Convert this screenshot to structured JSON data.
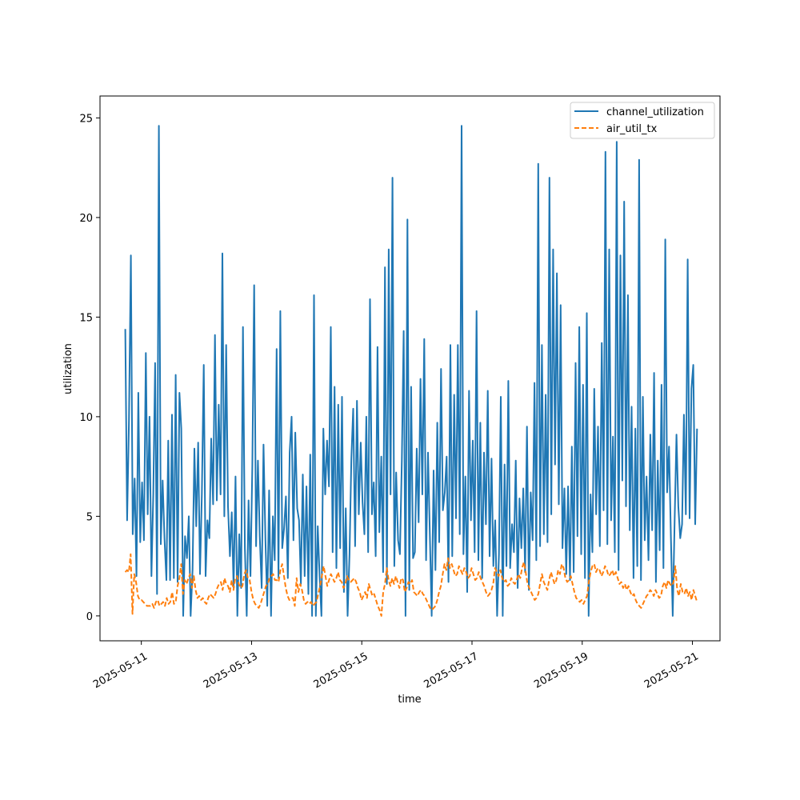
{
  "chart_data": {
    "type": "line",
    "title": "",
    "xlabel": "time",
    "ylabel": "utilization",
    "xlim": [
      "2025-05-10 06:00",
      "2025-05-21 12:00"
    ],
    "ylim": [
      -1.25,
      26.1
    ],
    "x_ticks": [
      "2025-05-11",
      "2025-05-13",
      "2025-05-15",
      "2025-05-17",
      "2025-05-19",
      "2025-05-21"
    ],
    "y_ticks": [
      0,
      5,
      10,
      15,
      20,
      25
    ],
    "grid": false,
    "legend_position": "top-right",
    "x_start": "2025-05-10 17:00",
    "x_end": "2025-05-21 02:00",
    "series": [
      {
        "name": "channel_utilization",
        "style": "solid",
        "color": "#1f77b4",
        "values": [
          14.4,
          4.8,
          9.8,
          18.1,
          4.1,
          6.9,
          2.0,
          11.2,
          3.7,
          6.7,
          3.8,
          13.2,
          5.1,
          10.0,
          2.0,
          6.1,
          12.7,
          1.1,
          24.6,
          3.6,
          6.8,
          3.9,
          1.8,
          8.8,
          1.8,
          10.1,
          1.9,
          12.1,
          1.7,
          11.2,
          9.4,
          0.0,
          4.0,
          2.9,
          5.0,
          0.0,
          2.3,
          8.4,
          4.5,
          8.7,
          2.1,
          6.1,
          12.6,
          2.0,
          4.8,
          3.9,
          8.9,
          5.6,
          14.1,
          5.8,
          10.6,
          6.1,
          18.2,
          5.0,
          13.6,
          5.5,
          3.0,
          5.2,
          1.4,
          7.0,
          0.0,
          4.1,
          1.4,
          14.5,
          3.4,
          0.0,
          5.8,
          2.0,
          7.5,
          16.6,
          3.5,
          7.8,
          4.0,
          1.4,
          8.6,
          3.8,
          0.5,
          6.3,
          0.0,
          5.0,
          2.8,
          13.4,
          1.9,
          15.3,
          3.4,
          4.4,
          6.0,
          1.9,
          8.2,
          10.0,
          3.8,
          9.2,
          5.4,
          4.8,
          1.6,
          7.1,
          2.0,
          6.5,
          1.1,
          8.1,
          0.0,
          16.1,
          0.0,
          4.5,
          2.0,
          0.0,
          9.4,
          6.1,
          8.8,
          6.5,
          14.5,
          3.2,
          11.5,
          2.4,
          10.6,
          3.4,
          11.0,
          1.2,
          5.4,
          0.0,
          3.1,
          7.9,
          10.4,
          3.5,
          10.8,
          5.1,
          8.7,
          5.7,
          4.1,
          10.0,
          3.2,
          15.9,
          5.1,
          6.7,
          3.0,
          13.5,
          4.2,
          8.0,
          2.2,
          17.5,
          1.6,
          18.4,
          6.1,
          22.0,
          2.5,
          7.2,
          3.8,
          3.1,
          7.8,
          14.3,
          0.0,
          19.9,
          1.3,
          11.5,
          2.9,
          3.2,
          8.4,
          4.7,
          11.9,
          6.1,
          13.9,
          2.8,
          8.2,
          4.1,
          0.0,
          7.3,
          2.3,
          9.7,
          3.7,
          12.4,
          5.3,
          6.2,
          8.0,
          1.7,
          13.6,
          3.0,
          11.1,
          4.9,
          13.6,
          4.1,
          24.6,
          3.1,
          7.0,
          1.2,
          11.3,
          4.8,
          8.8,
          3.2,
          15.3,
          2.8,
          9.7,
          1.9,
          8.2,
          4.6,
          11.3,
          3.0,
          7.9,
          2.5,
          4.8,
          0.0,
          3.1,
          11.0,
          0.0,
          7.6,
          2.5,
          11.8,
          2.4,
          4.6,
          3.2,
          7.8,
          1.4,
          5.9,
          3.4,
          6.4,
          2.2,
          9.5,
          1.3,
          6.2,
          3.8,
          11.7,
          2.8,
          22.7,
          3.5,
          13.6,
          4.1,
          11.1,
          3.7,
          22.0,
          5.1,
          18.4,
          7.6,
          17.2,
          5.6,
          15.6,
          3.4,
          6.4,
          2.1,
          6.5,
          1.8,
          8.5,
          2.2,
          12.7,
          4.0,
          14.5,
          3.1,
          11.6,
          1.9,
          15.2,
          0.0,
          6.1,
          3.2,
          11.4,
          5.1,
          9.5,
          3.5,
          13.7,
          5.3,
          23.3,
          3.6,
          18.4,
          4.8,
          9.0,
          3.2,
          23.8,
          2.3,
          18.1,
          6.8,
          20.8,
          5.5,
          16.1,
          4.3,
          10.5,
          1.9,
          9.4,
          2.5,
          22.9,
          1.8,
          11.0,
          3.8,
          7.0,
          2.8,
          9.1,
          4.3,
          12.2,
          1.7,
          7.8,
          3.3,
          11.6,
          2.4,
          18.9,
          6.2,
          8.5,
          4.0,
          0.0,
          4.8,
          9.1,
          5.5,
          3.9,
          4.6,
          10.1,
          5.1,
          17.9,
          4.9,
          11.4,
          12.6,
          4.6,
          9.4
        ]
      },
      {
        "name": "air_util_tx",
        "style": "dashed",
        "color": "#ff7f0e",
        "values": [
          2.2,
          2.3,
          2.2,
          3.1,
          0.1,
          2.1,
          1.7,
          1.0,
          0.8,
          0.8,
          0.7,
          0.6,
          0.5,
          0.5,
          0.5,
          0.6,
          0.4,
          0.7,
          0.8,
          0.5,
          0.6,
          0.7,
          0.5,
          0.9,
          0.6,
          0.7,
          1.2,
          0.6,
          0.7,
          1.5,
          1.9,
          2.6,
          1.1,
          1.8,
          1.6,
          1.9,
          2.1,
          1.4,
          2.0,
          1.3,
          0.9,
          1.0,
          0.8,
          0.9,
          0.7,
          0.6,
          0.9,
          1.1,
          1.0,
          0.9,
          1.1,
          1.4,
          1.6,
          1.7,
          1.3,
          1.9,
          1.6,
          1.5,
          1.2,
          1.8,
          1.3,
          1.9,
          2.0,
          1.6,
          1.4,
          1.5,
          2.1,
          2.3,
          1.9,
          1.8,
          1.2,
          0.8,
          0.6,
          0.5,
          0.4,
          0.6,
          0.9,
          1.2,
          1.5,
          1.6,
          1.9,
          2.0,
          2.1,
          1.8,
          1.8,
          1.7,
          2.3,
          2.6,
          2.0,
          1.4,
          1.0,
          0.8,
          0.9,
          0.9,
          0.5,
          1.9,
          1.2,
          1.6,
          1.3,
          0.8,
          0.6,
          0.7,
          0.6,
          0.7,
          0.5,
          0.6,
          0.7,
          1.1,
          1.5,
          2.0,
          2.5,
          2.0,
          1.5,
          1.8,
          2.1,
          1.9,
          1.7,
          1.9,
          2.2,
          1.8,
          1.7,
          1.4,
          1.6,
          2.0,
          1.8,
          1.7,
          1.8,
          1.9,
          1.7,
          1.4,
          1.2,
          0.8,
          1.0,
          1.2,
          0.9,
          1.6,
          1.3,
          1.0,
          1.1,
          0.8,
          0.5,
          0.3,
          0.0,
          1.2,
          1.6,
          2.4,
          1.8,
          1.5,
          1.9,
          1.6,
          2.0,
          1.7,
          1.4,
          1.9,
          1.8,
          1.2,
          1.4,
          1.7,
          1.6,
          1.8,
          1.2,
          1.1,
          1.0,
          1.2,
          1.3,
          1.1,
          1.0,
          0.8,
          0.6,
          0.4,
          0.3,
          0.4,
          0.5,
          0.8,
          1.2,
          1.5,
          2.1,
          2.6,
          2.3,
          2.9,
          2.4,
          2.6,
          2.3,
          2.0,
          2.1,
          2.5,
          2.3,
          2.1,
          2.4,
          2.2,
          1.9,
          2.0,
          2.4,
          2.1,
          1.8,
          1.9,
          2.2,
          1.9,
          1.7,
          1.5,
          1.2,
          1.0,
          1.1,
          1.3,
          1.6,
          2.4,
          2.2,
          2.0,
          2.3,
          1.9,
          1.7,
          1.8,
          1.5,
          1.6,
          1.9,
          1.7,
          1.6,
          1.8,
          2.1,
          1.9,
          2.4,
          2.7,
          2.2,
          1.6,
          1.4,
          1.2,
          1.0,
          0.8,
          0.9,
          1.1,
          1.6,
          2.1,
          1.7,
          1.5,
          1.3,
          1.8,
          2.2,
          1.9,
          1.6,
          1.8,
          2.3,
          2.1,
          2.6,
          2.4,
          1.9,
          1.7,
          1.8,
          2.0,
          1.6,
          1.2,
          0.9,
          0.8,
          0.7,
          0.8,
          0.6,
          0.8,
          1.0,
          1.7,
          2.2,
          2.5,
          2.6,
          2.2,
          2.4,
          2.3,
          2.0,
          2.2,
          2.5,
          2.3,
          2.0,
          2.1,
          2.3,
          2.0,
          2.2,
          1.9,
          1.6,
          1.7,
          1.4,
          1.6,
          1.3,
          1.5,
          1.2,
          1.0,
          1.1,
          0.8,
          0.6,
          0.5,
          0.4,
          0.6,
          0.8,
          1.0,
          1.1,
          1.3,
          1.2,
          1.0,
          1.3,
          1.1,
          0.9,
          1.0,
          1.5,
          1.7,
          1.4,
          1.8,
          1.6,
          1.5,
          1.7,
          2.5,
          1.3,
          1.0,
          1.6,
          1.2,
          1.1,
          1.4,
          1.0,
          1.2,
          0.8,
          1.3,
          1.0,
          0.7
        ]
      }
    ]
  }
}
